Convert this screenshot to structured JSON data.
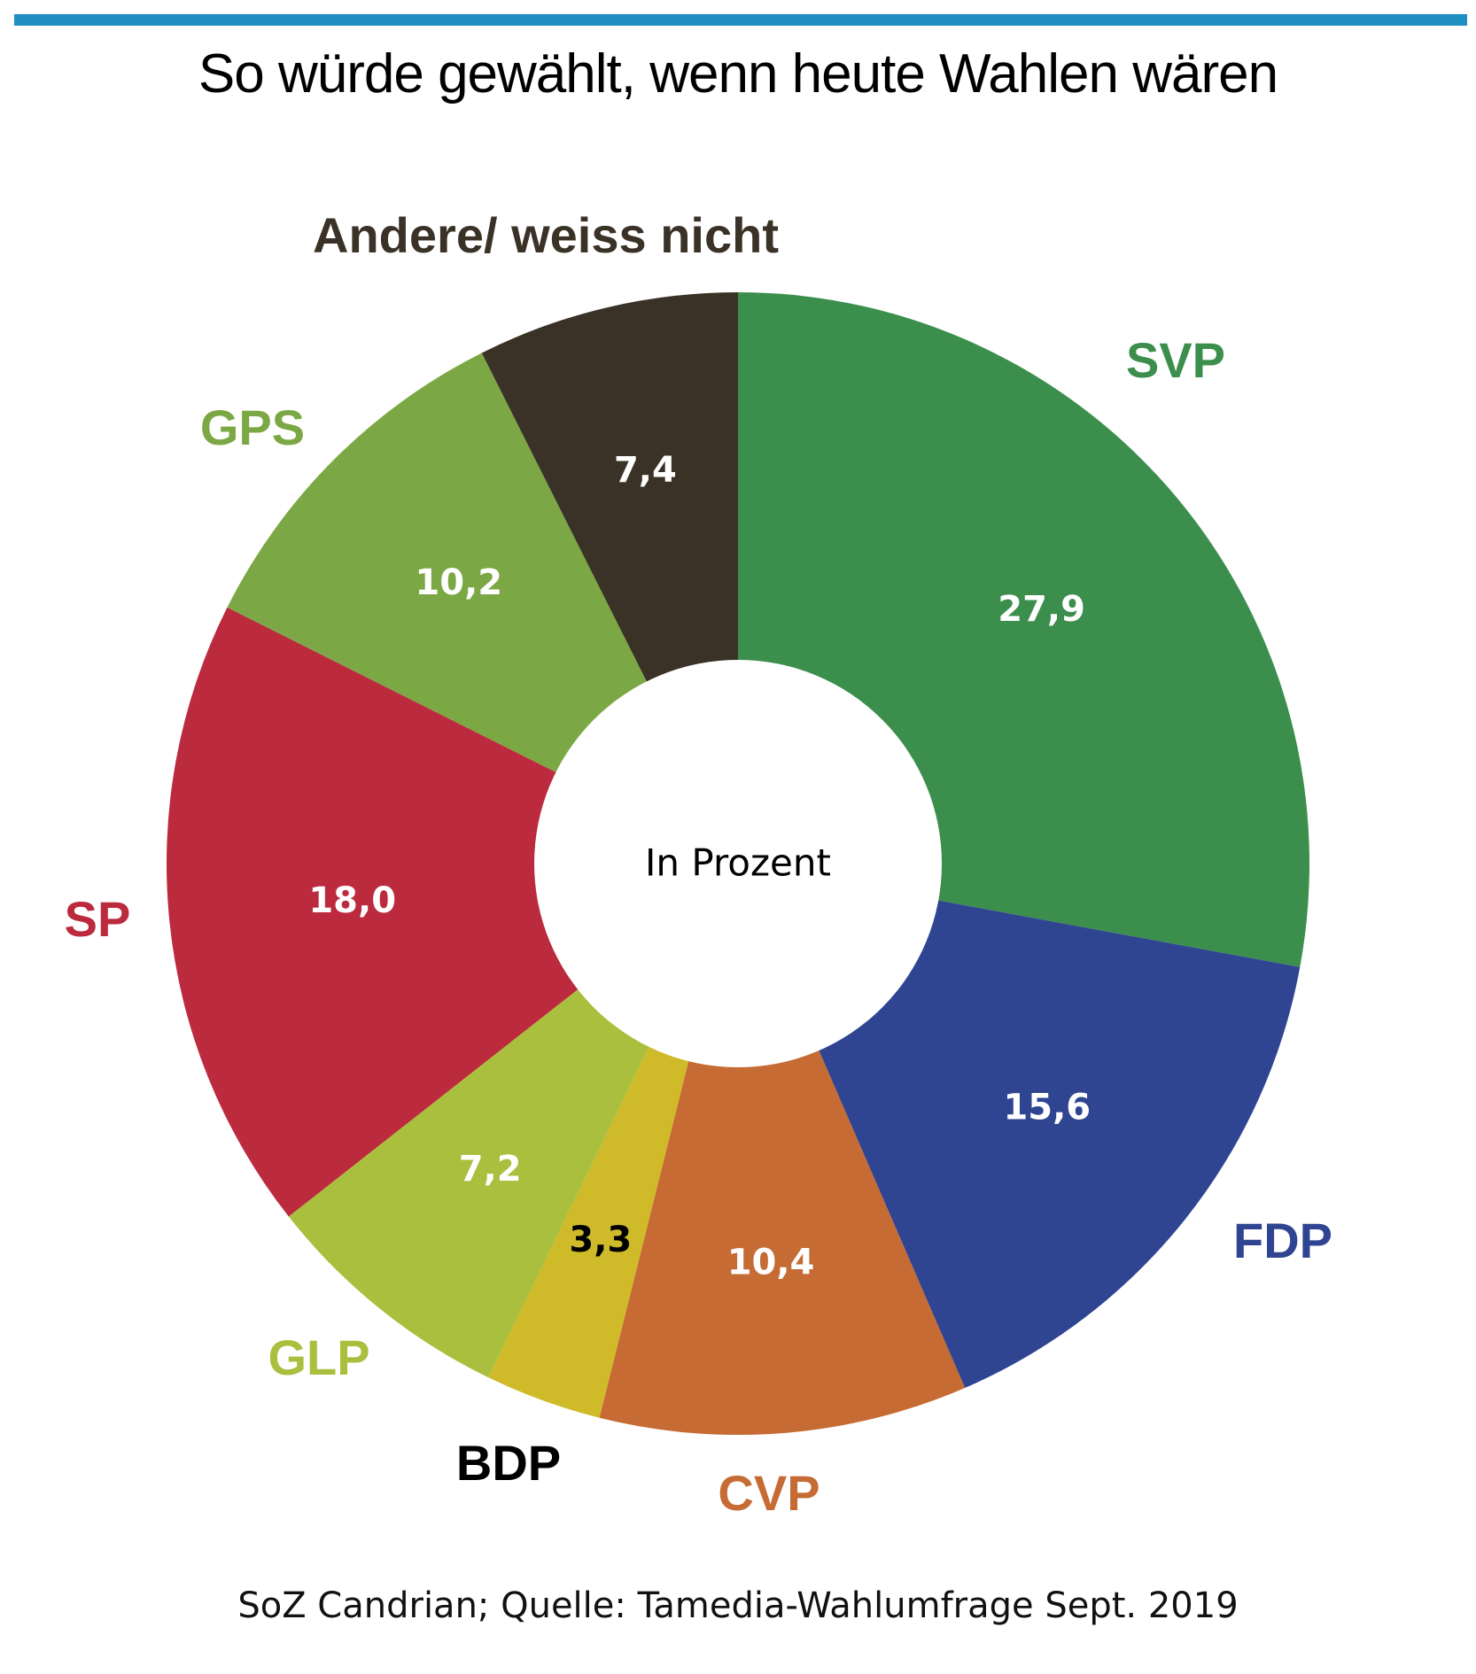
{
  "header": {
    "title": "So würde gewählt, wenn heute Wahlen wären",
    "accent_color": "#1f8fc2"
  },
  "footer": {
    "source": "SoZ Candrian; Quelle: Tamedia-Wahlumfrage Sept. 2019"
  },
  "chart_data": {
    "type": "pie",
    "variant": "donut",
    "title": "So würde gewählt, wenn heute Wahlen wären",
    "center_label": "In Prozent",
    "unit": "%",
    "start": "12 o'clock",
    "direction": "clockwise",
    "slices": [
      {
        "label": "SVP",
        "value": 27.9,
        "value_label": "27,9",
        "color": "#3b8e4c",
        "label_color": "#3b8e4c",
        "value_color": "#ffffff"
      },
      {
        "label": "FDP",
        "value": 15.6,
        "value_label": "15,6",
        "color": "#304592",
        "label_color": "#304592",
        "value_color": "#ffffff"
      },
      {
        "label": "CVP",
        "value": 10.4,
        "value_label": "10,4",
        "color": "#c56b33",
        "label_color": "#c56b33",
        "value_color": "#ffffff"
      },
      {
        "label": "BDP",
        "value": 3.3,
        "value_label": "3,3",
        "color": "#cfba29",
        "label_color": "#000000",
        "value_color": "#000000"
      },
      {
        "label": "GLP",
        "value": 7.2,
        "value_label": "7,2",
        "color": "#a9bf3d",
        "label_color": "#a9bf3d",
        "value_color": "#ffffff"
      },
      {
        "label": "SP",
        "value": 18.0,
        "value_label": "18,0",
        "color": "#bc2a3e",
        "label_color": "#bc2a3e",
        "value_color": "#ffffff"
      },
      {
        "label": "GPS",
        "value": 10.2,
        "value_label": "10,2",
        "color": "#7ba844",
        "label_color": "#7ba844",
        "value_color": "#ffffff"
      },
      {
        "label": "Andere/ weiss nicht",
        "value": 7.4,
        "value_label": "7,4",
        "color": "#3a3227",
        "label_color": "#3a3227",
        "value_color": "#ffffff"
      }
    ]
  }
}
